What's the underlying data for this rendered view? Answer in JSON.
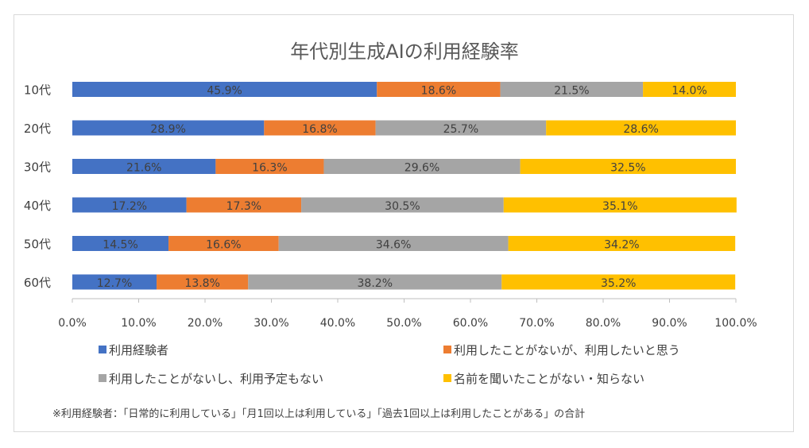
{
  "chart_data": {
    "type": "bar",
    "orientation": "horizontal-stacked-100",
    "title": "年代別生成AIの利用経験率",
    "categories": [
      "10代",
      "20代",
      "30代",
      "40代",
      "50代",
      "60代"
    ],
    "series": [
      {
        "name": "利用経験者",
        "color": "#4472c4",
        "values": [
          45.9,
          28.9,
          21.6,
          17.2,
          14.5,
          12.7
        ],
        "labels": [
          "45.9%",
          "28.9%",
          "21.6%",
          "17.2%",
          "14.5%",
          "12.7%"
        ]
      },
      {
        "name": "利用したことがないが、利用したいと思う",
        "color": "#ed7d31",
        "values": [
          18.6,
          16.8,
          16.3,
          17.3,
          16.6,
          13.8
        ],
        "labels": [
          "18.6%",
          "16.8%",
          "16.3%",
          "17.3%",
          "16.6%",
          "13.8%"
        ]
      },
      {
        "name": "利用したことがないし、利用予定もない",
        "color": "#a5a5a5",
        "values": [
          21.5,
          25.7,
          29.6,
          30.5,
          34.6,
          38.2
        ],
        "labels": [
          "21.5%",
          "25.7%",
          "29.6%",
          "30.5%",
          "34.6%",
          "38.2%"
        ]
      },
      {
        "name": "名前を聞いたことがない・知らない",
        "color": "#ffc000",
        "values": [
          14.0,
          28.6,
          32.5,
          35.1,
          34.2,
          35.2
        ],
        "labels": [
          "14.0%",
          "28.6%",
          "32.5%",
          "35.1%",
          "34.2%",
          "35.2%"
        ]
      }
    ],
    "xlim": [
      0,
      100
    ],
    "xticks": [
      "0.0%",
      "10.0%",
      "20.0%",
      "30.0%",
      "40.0%",
      "50.0%",
      "60.0%",
      "70.0%",
      "80.0%",
      "90.0%",
      "100.0%"
    ],
    "legend_position": "bottom",
    "grid": false
  },
  "footnote": "※利用経験者：「日常的に利用している」「月1回以上は利用している」「過去1回以上は利用したことがある」の合計"
}
